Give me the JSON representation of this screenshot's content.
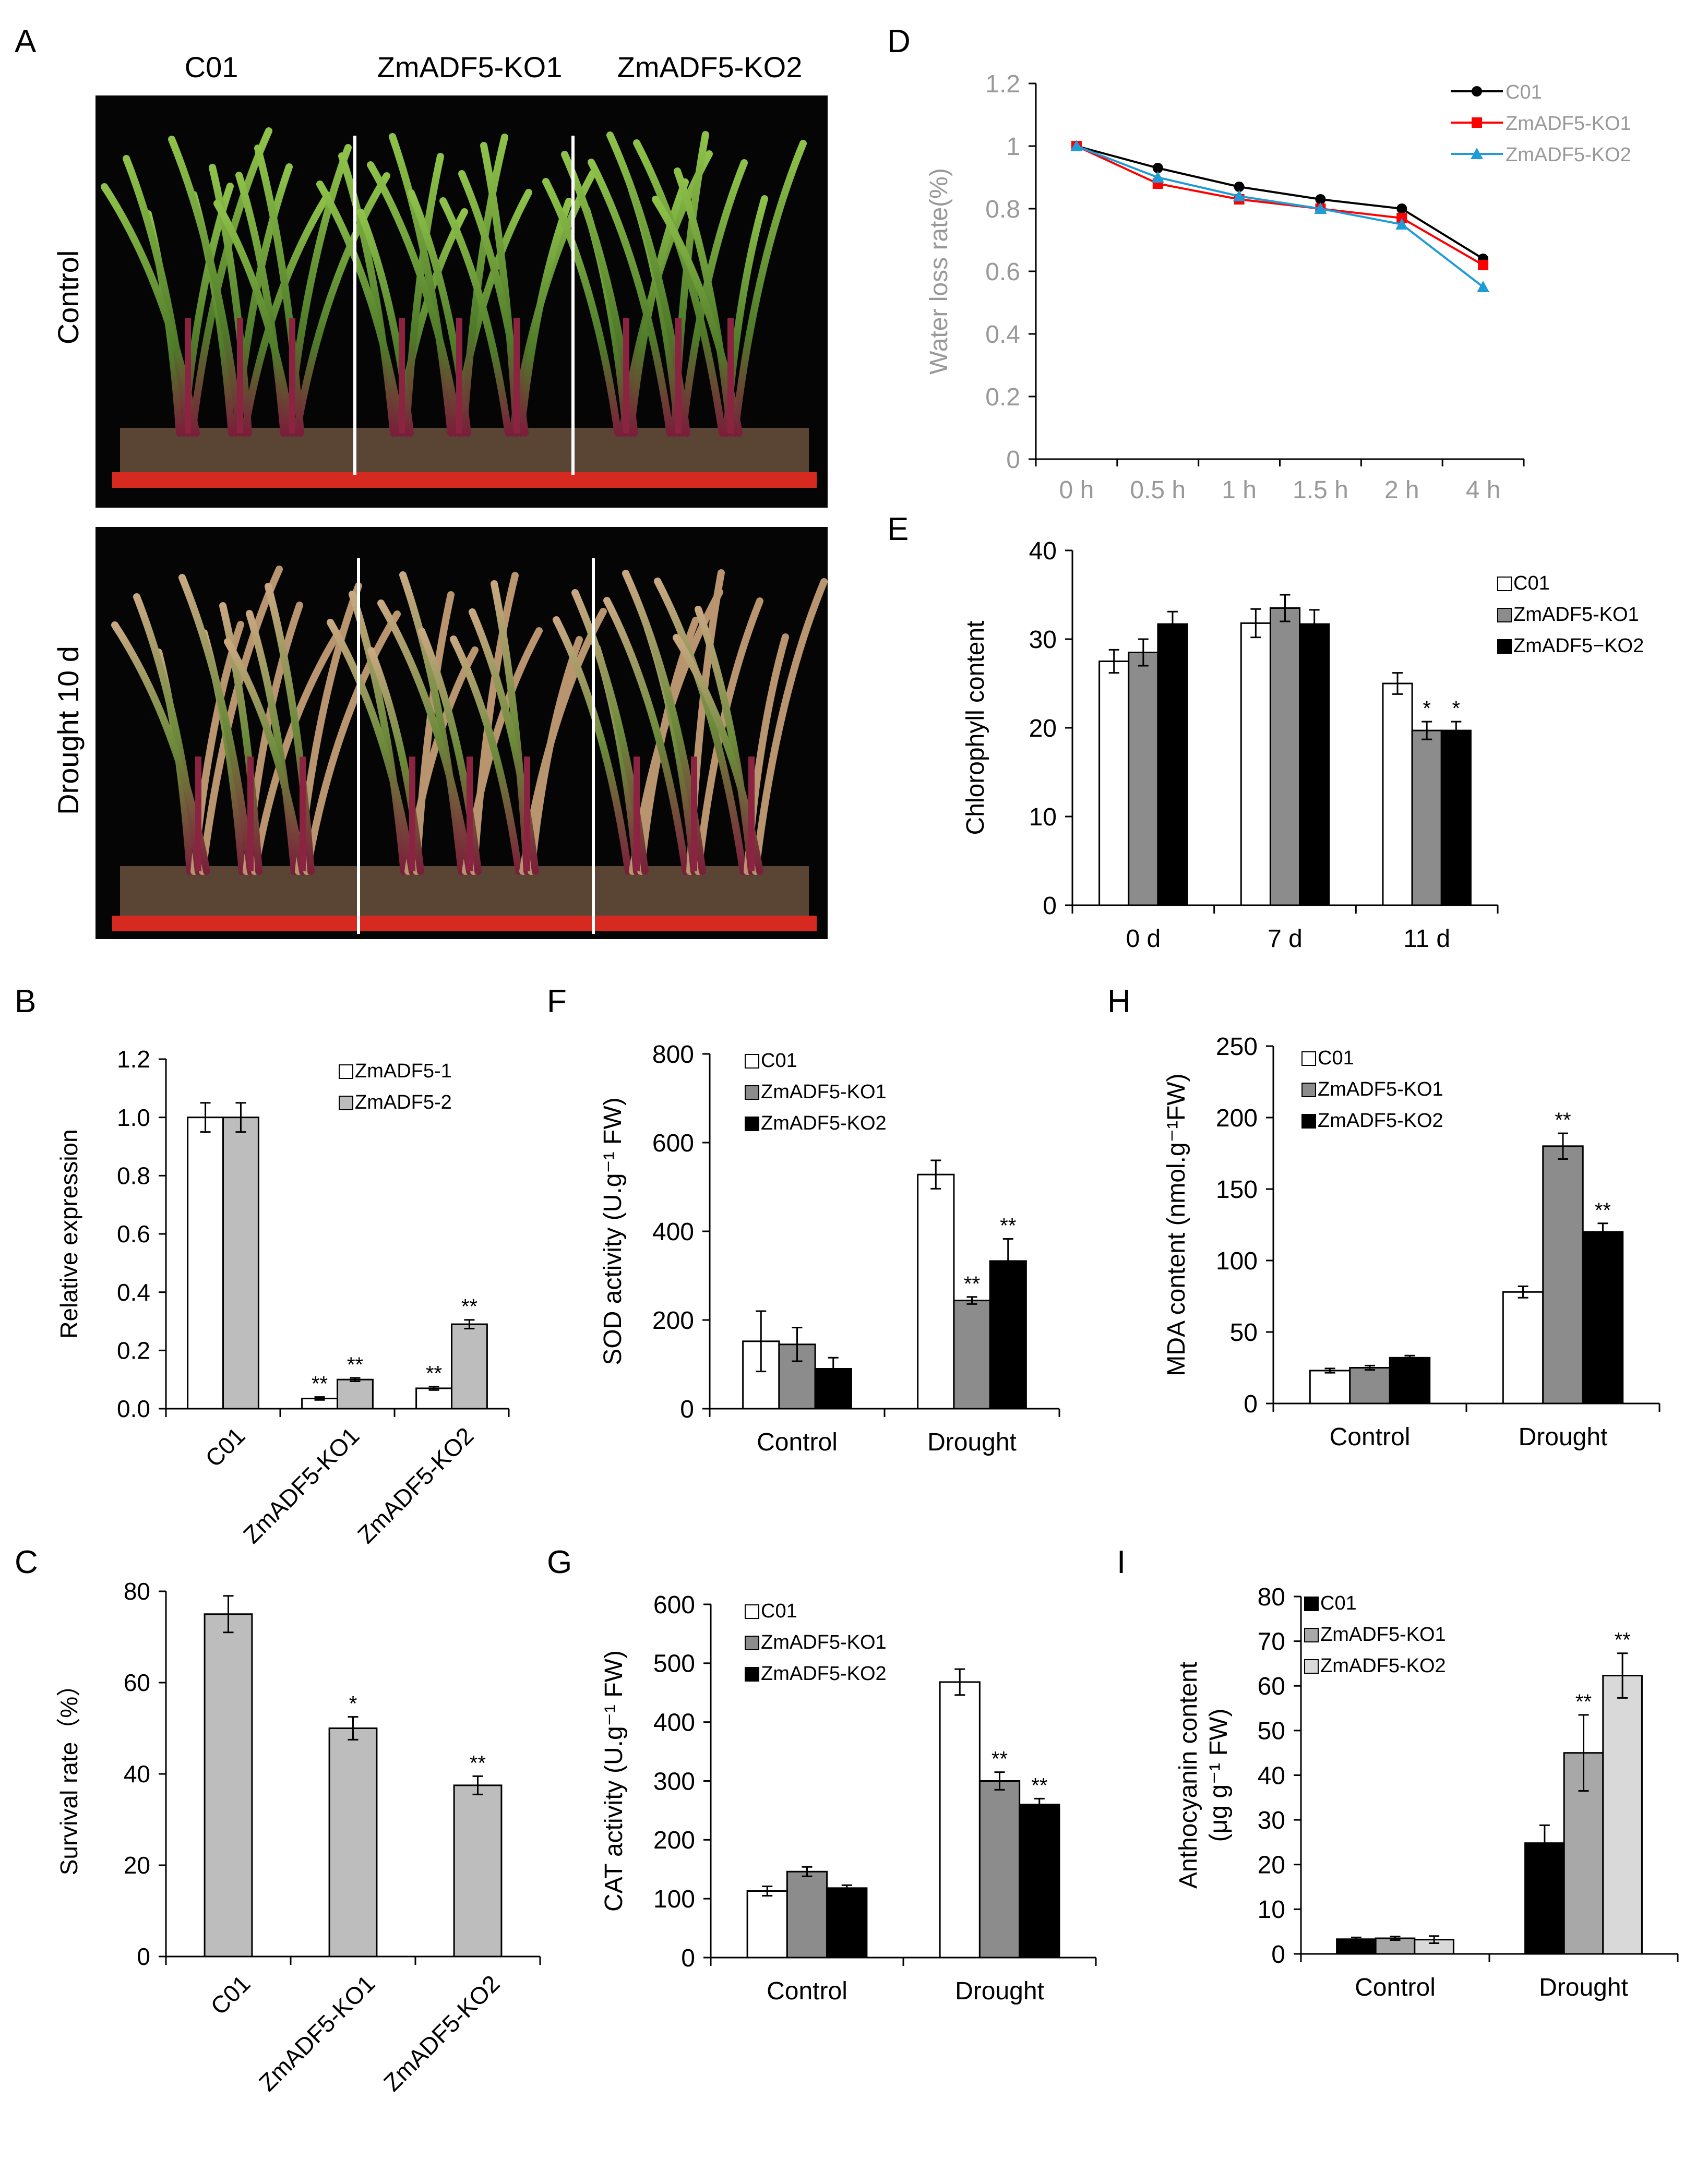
{
  "panel_labels": {
    "A": "A",
    "B": "B",
    "C": "C",
    "D": "D",
    "E": "E",
    "F": "F",
    "G": "G",
    "H": "H",
    "I": "I"
  },
  "photo": {
    "column_labels": [
      "C01",
      "ZmADF5-KO1",
      "ZmADF5-KO2"
    ],
    "row_labels": [
      "Control",
      "Drought 10 d"
    ]
  },
  "colors": {
    "white": "#ffffff",
    "gray": "#8c8c8c",
    "light_gray": "#bdbdbd",
    "black": "#000000",
    "line_black": "#000000",
    "line_red": "#ff0000",
    "line_blue": "#1f9bd6",
    "axis_text": "#999999"
  },
  "chart_data": [
    {
      "id": "D",
      "type": "line",
      "categories": [
        "0 h",
        "0.5 h",
        "1 h",
        "1.5 h",
        "2 h",
        "4 h"
      ],
      "ylabel": "Water loss rate(%)",
      "ylim": [
        0,
        1.2
      ],
      "yticks": [
        "0",
        "0.2",
        "0.4",
        "0.6",
        "0.8",
        "1",
        "1.2"
      ],
      "legend_position": "top-right",
      "series": [
        {
          "name": "C01",
          "color": "#000000",
          "marker": "circle",
          "values": [
            1.0,
            0.93,
            0.87,
            0.83,
            0.8,
            0.64
          ]
        },
        {
          "name": "ZmADF5-KO1",
          "color": "#ff0000",
          "marker": "square",
          "values": [
            1.0,
            0.88,
            0.83,
            0.8,
            0.77,
            0.62
          ]
        },
        {
          "name": "ZmADF5-KO2",
          "color": "#1f9bd6",
          "marker": "triangle",
          "values": [
            1.0,
            0.9,
            0.84,
            0.8,
            0.75,
            0.55
          ]
        }
      ]
    },
    {
      "id": "E",
      "type": "bar",
      "categories": [
        "0 d",
        "7 d",
        "11 d"
      ],
      "ylabel": "Chlorophyll content",
      "ylim": [
        0,
        40
      ],
      "yticks": [
        "0",
        "10",
        "20",
        "30",
        "40"
      ],
      "legend_position": "top-right",
      "series": [
        {
          "name": "C01",
          "fill": "#ffffff",
          "values": [
            27.5,
            31.8,
            25.0
          ],
          "errors": [
            1.3,
            1.6,
            1.2
          ],
          "sig": [
            "",
            "",
            ""
          ]
        },
        {
          "name": "ZmADF5-KO1",
          "fill": "#8c8c8c",
          "values": [
            28.5,
            33.5,
            19.7
          ],
          "errors": [
            1.5,
            1.5,
            1.0
          ],
          "sig": [
            "",
            "",
            "*"
          ]
        },
        {
          "name": "ZmADF5−KO2",
          "fill": "#000000",
          "values": [
            31.7,
            31.7,
            19.7
          ],
          "errors": [
            1.4,
            1.6,
            1.0
          ],
          "sig": [
            "",
            "",
            "*"
          ]
        }
      ]
    },
    {
      "id": "B",
      "type": "bar",
      "categories": [
        "C01",
        "ZmADF5-KO1",
        "ZmADF5-KO2"
      ],
      "category_rotate": true,
      "ylabel": "Relative expression",
      "ylim": [
        0,
        1.2
      ],
      "yticks": [
        "0.0",
        "0.2",
        "0.4",
        "0.6",
        "0.8",
        "1.0",
        "1.2"
      ],
      "legend_position": "top-right",
      "series": [
        {
          "name": "ZmADF5-1",
          "fill": "#ffffff",
          "values": [
            1.0,
            0.035,
            0.07
          ],
          "errors": [
            0.05,
            0.005,
            0.006
          ],
          "sig": [
            "",
            "**",
            "**"
          ]
        },
        {
          "name": "ZmADF5-2",
          "fill": "#bdbdbd",
          "values": [
            1.0,
            0.1,
            0.29
          ],
          "errors": [
            0.05,
            0.006,
            0.015
          ],
          "sig": [
            "",
            "**",
            "**"
          ]
        }
      ]
    },
    {
      "id": "C",
      "type": "bar",
      "categories": [
        "C01",
        "ZmADF5-KO1",
        "ZmADF5-KO2"
      ],
      "category_rotate": true,
      "ylabel": "Survival rate（%）",
      "ylim": [
        0,
        80
      ],
      "yticks": [
        "0",
        "20",
        "40",
        "60",
        "80"
      ],
      "series": [
        {
          "name": "",
          "fill": "#bdbdbd",
          "values": [
            75,
            50,
            37.5
          ],
          "errors": [
            4,
            2.5,
            2
          ],
          "sig": [
            "",
            "*",
            "**"
          ]
        }
      ]
    },
    {
      "id": "F",
      "type": "bar",
      "categories": [
        "Control",
        "Drought"
      ],
      "ylabel": "SOD activity (U.g⁻¹ FW)",
      "ylim": [
        0,
        800
      ],
      "yticks": [
        "0",
        "200",
        "400",
        "600",
        "800"
      ],
      "legend_position": "top-left",
      "series": [
        {
          "name": "C01",
          "fill": "#ffffff",
          "values": [
            152,
            528
          ],
          "errors": [
            68,
            32
          ],
          "sig": [
            "",
            ""
          ]
        },
        {
          "name": "ZmADF5-KO1",
          "fill": "#8c8c8c",
          "values": [
            145,
            244
          ],
          "errors": [
            38,
            8
          ],
          "sig": [
            "",
            "**"
          ]
        },
        {
          "name": "ZmADF5-KO2",
          "fill": "#000000",
          "values": [
            90,
            333
          ],
          "errors": [
            25,
            50
          ],
          "sig": [
            "",
            "**"
          ]
        }
      ]
    },
    {
      "id": "G",
      "type": "bar",
      "categories": [
        "Control",
        "Drought"
      ],
      "ylabel": "CAT activity (U.g⁻¹ FW)",
      "ylim": [
        0,
        600
      ],
      "yticks": [
        "0",
        "100",
        "200",
        "300",
        "400",
        "500",
        "600"
      ],
      "legend_position": "top-left",
      "series": [
        {
          "name": "C01",
          "fill": "#ffffff",
          "values": [
            113,
            468
          ],
          "errors": [
            8,
            22
          ],
          "sig": [
            "",
            ""
          ]
        },
        {
          "name": "ZmADF5-KO1",
          "fill": "#8c8c8c",
          "values": [
            146,
            300
          ],
          "errors": [
            8,
            15
          ],
          "sig": [
            "",
            "**"
          ]
        },
        {
          "name": "ZmADF5-KO2",
          "fill": "#000000",
          "values": [
            118,
            260
          ],
          "errors": [
            5,
            10
          ],
          "sig": [
            "",
            "**"
          ]
        }
      ]
    },
    {
      "id": "H",
      "type": "bar",
      "categories": [
        "Control",
        "Drought"
      ],
      "ylabel": "MDA content (nmol.g⁻¹FW)",
      "ylim": [
        0,
        250
      ],
      "yticks": [
        "0",
        "50",
        "100",
        "150",
        "200",
        "250"
      ],
      "legend_position": "top-left",
      "series": [
        {
          "name": "C01",
          "fill": "#ffffff",
          "values": [
            23,
            78
          ],
          "errors": [
            1.5,
            4
          ],
          "sig": [
            "",
            ""
          ]
        },
        {
          "name": "ZmADF5-KO1",
          "fill": "#8c8c8c",
          "values": [
            25,
            180
          ],
          "errors": [
            1.5,
            9
          ],
          "sig": [
            "",
            "**"
          ]
        },
        {
          "name": "ZmADF5-KO2",
          "fill": "#000000",
          "values": [
            32,
            120
          ],
          "errors": [
            1.5,
            6
          ],
          "sig": [
            "",
            "**"
          ]
        }
      ]
    },
    {
      "id": "I",
      "type": "bar",
      "categories": [
        "Control",
        "Drought"
      ],
      "ylabel": "Anthocyanin content",
      "ylabel2": "(μg g⁻¹ FW)",
      "ylim": [
        0,
        80
      ],
      "yticks": [
        "0",
        "10",
        "20",
        "30",
        "40",
        "50",
        "60",
        "70",
        "80"
      ],
      "legend_position": "top-left",
      "series": [
        {
          "name": "C01",
          "fill": "#000000",
          "values": [
            3.3,
            24.8
          ],
          "errors": [
            0.4,
            4
          ],
          "sig": [
            "",
            ""
          ]
        },
        {
          "name": "ZmADF5-KO1",
          "fill": "#a8a8a8",
          "values": [
            3.5,
            45.0
          ],
          "errors": [
            0.4,
            8.5
          ],
          "sig": [
            "",
            "**"
          ]
        },
        {
          "name": "ZmADF5-KO2",
          "fill": "#d9d9d9",
          "values": [
            3.2,
            62.3
          ],
          "errors": [
            0.8,
            5
          ],
          "sig": [
            "",
            "**"
          ]
        }
      ]
    }
  ]
}
